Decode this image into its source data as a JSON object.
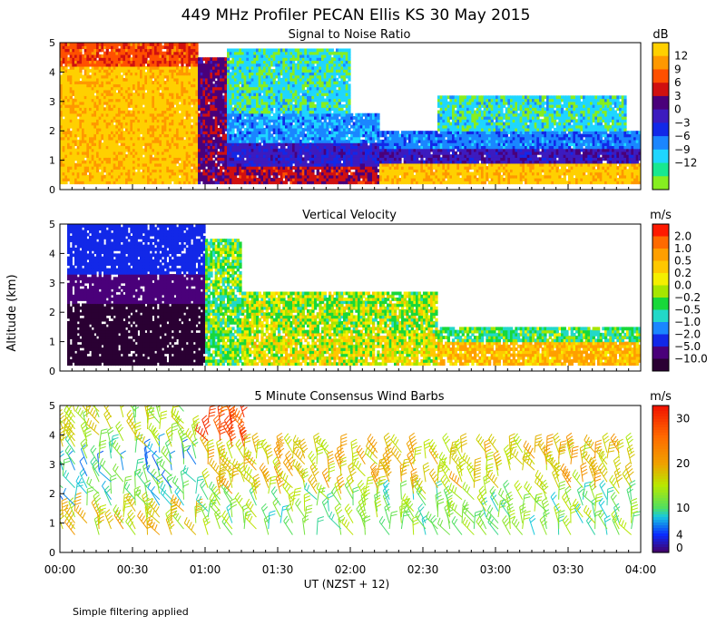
{
  "figure": {
    "title": "449 MHz Profiler PECAN Ellis KS 30 May 2015",
    "y_axis_label": "Altitude (km)",
    "x_axis_label": "UT  (NZST + 12)",
    "footnote": "Simple filtering applied"
  },
  "chart_data": [
    {
      "type": "heatmap",
      "id": "snr",
      "title": "Signal to Noise Ratio",
      "xlabel": "UT (NZST + 12)",
      "ylabel": "Altitude (km)",
      "xlim_hours": [
        0,
        4
      ],
      "ylim": [
        0,
        5
      ],
      "y_ticks": [
        "0",
        "1",
        "2",
        "3",
        "4",
        "5"
      ],
      "colorbar": {
        "unit": "dB",
        "labels": [
          "12",
          "9",
          "6",
          "3",
          "0",
          "−3",
          "−6",
          "−9",
          "−12"
        ],
        "colors": [
          "#ffd000",
          "#ff9800",
          "#ff5000",
          "#d01010",
          "#4a007a",
          "#3c1bbf",
          "#1228e8",
          "#1a86ff",
          "#1fd6ff",
          "#18e890",
          "#86ee20"
        ]
      },
      "regions": [
        {
          "t0": 0.0,
          "t1": 0.95,
          "h0": 0.2,
          "h1": 4.2,
          "value": 13
        },
        {
          "t0": 0.0,
          "t1": 0.95,
          "h0": 4.2,
          "h1": 5.0,
          "value": 7
        },
        {
          "t0": 0.95,
          "t1": 1.15,
          "h0": 0.2,
          "h1": 4.5,
          "value": 2
        },
        {
          "t0": 1.15,
          "t1": 2.2,
          "h0": 0.2,
          "h1": 0.8,
          "value": 4
        },
        {
          "t0": 1.15,
          "t1": 2.2,
          "h0": 0.8,
          "h1": 1.6,
          "value": -2
        },
        {
          "t0": 1.15,
          "t1": 2.2,
          "h0": 1.6,
          "h1": 2.6,
          "value": -8
        },
        {
          "t0": 1.15,
          "t1": 2.0,
          "h0": 2.6,
          "h1": 4.8,
          "value": -11
        },
        {
          "t0": 2.2,
          "t1": 4.0,
          "h0": 0.2,
          "h1": 0.9,
          "value": 13
        },
        {
          "t0": 2.2,
          "t1": 4.0,
          "h0": 0.9,
          "h1": 1.4,
          "value": -1
        },
        {
          "t0": 2.2,
          "t1": 4.0,
          "h0": 1.4,
          "h1": 2.0,
          "value": -7
        },
        {
          "t0": 2.6,
          "t1": 3.9,
          "h0": 2.0,
          "h1": 3.2,
          "value": -11
        }
      ]
    },
    {
      "type": "heatmap",
      "id": "vertical_velocity",
      "title": "Vertical Velocity",
      "xlabel": "UT (NZST + 12)",
      "ylabel": "Altitude (km)",
      "xlim_hours": [
        0,
        4
      ],
      "ylim": [
        0,
        5
      ],
      "y_ticks": [
        "0",
        "1",
        "2",
        "3",
        "4",
        "5"
      ],
      "colorbar": {
        "unit": "m/s",
        "labels": [
          "2.0",
          "1.0",
          "0.5",
          "0.2",
          "0.0",
          "−0.2",
          "−0.5",
          "−1.0",
          "−2.0",
          "−5.0",
          "−10.0"
        ],
        "colors": [
          "#ff1a00",
          "#ff6a00",
          "#ff9f00",
          "#ffc800",
          "#f4ef00",
          "#a6e600",
          "#18d83a",
          "#22d8c8",
          "#1a86ff",
          "#1228e8",
          "#4a007a",
          "#2a0033"
        ]
      },
      "regions": [
        {
          "t0": 0.05,
          "t1": 1.0,
          "h0": 0.2,
          "h1": 2.3,
          "value": -12
        },
        {
          "t0": 0.05,
          "t1": 1.0,
          "h0": 2.3,
          "h1": 3.3,
          "value": -6
        },
        {
          "t0": 0.05,
          "t1": 1.0,
          "h0": 3.3,
          "h1": 5.0,
          "value": -3
        },
        {
          "t0": 1.0,
          "t1": 1.25,
          "h0": 0.2,
          "h1": 4.5,
          "value": -0.3
        },
        {
          "t0": 1.25,
          "t1": 2.6,
          "h0": 0.2,
          "h1": 1.3,
          "value": 0.1
        },
        {
          "t0": 1.25,
          "t1": 2.6,
          "h0": 1.3,
          "h1": 2.7,
          "value": -0.1
        },
        {
          "t0": 2.6,
          "t1": 4.0,
          "h0": 0.2,
          "h1": 1.0,
          "value": 0.5
        },
        {
          "t0": 2.6,
          "t1": 4.0,
          "h0": 1.0,
          "h1": 1.5,
          "value": -0.4
        }
      ]
    },
    {
      "type": "wind_barbs",
      "id": "wind_barbs",
      "title": "5 Minute Consensus Wind Barbs",
      "xlabel": "UT (NZST + 12)",
      "ylabel": "Altitude (km)",
      "xlim_hours": [
        0,
        4
      ],
      "ylim": [
        0,
        5
      ],
      "y_ticks": [
        "0",
        "1",
        "2",
        "3",
        "4",
        "5"
      ],
      "x_tick_labels": [
        "00:00",
        "00:30",
        "01:00",
        "01:30",
        "02:00",
        "02:30",
        "03:00",
        "03:30",
        "04:00"
      ],
      "colorbar": {
        "unit": "m/s",
        "labels": [
          "30",
          "20",
          "10",
          "4",
          "0"
        ],
        "stops": [
          {
            "value": 0,
            "color": "#440066"
          },
          {
            "value": 4,
            "color": "#0a2cff"
          },
          {
            "value": 8,
            "color": "#18c8e0"
          },
          {
            "value": 10,
            "color": "#50e060"
          },
          {
            "value": 15,
            "color": "#b8e800"
          },
          {
            "value": 20,
            "color": "#f0a000"
          },
          {
            "value": 26,
            "color": "#ff6a00"
          },
          {
            "value": 33,
            "color": "#f01000"
          }
        ]
      },
      "speed_field": [
        {
          "t0": 0.0,
          "t1": 1.0,
          "h0": 0.5,
          "h1": 1.5,
          "speed": 17
        },
        {
          "t0": 0.0,
          "t1": 1.0,
          "h0": 1.5,
          "h1": 3.6,
          "speed": 9
        },
        {
          "t0": 0.0,
          "t1": 1.0,
          "h0": 3.6,
          "h1": 5.2,
          "speed": 14
        },
        {
          "t0": 0.95,
          "t1": 1.3,
          "h0": 3.2,
          "h1": 4.8,
          "speed": 27
        },
        {
          "t0": 1.0,
          "t1": 4.0,
          "h0": 0.5,
          "h1": 1.8,
          "speed": 12
        },
        {
          "t0": 1.0,
          "t1": 4.0,
          "h0": 1.8,
          "h1": 3.5,
          "speed": 18
        }
      ],
      "time_step_hours": 0.0833,
      "height_step_km": 0.2
    }
  ]
}
